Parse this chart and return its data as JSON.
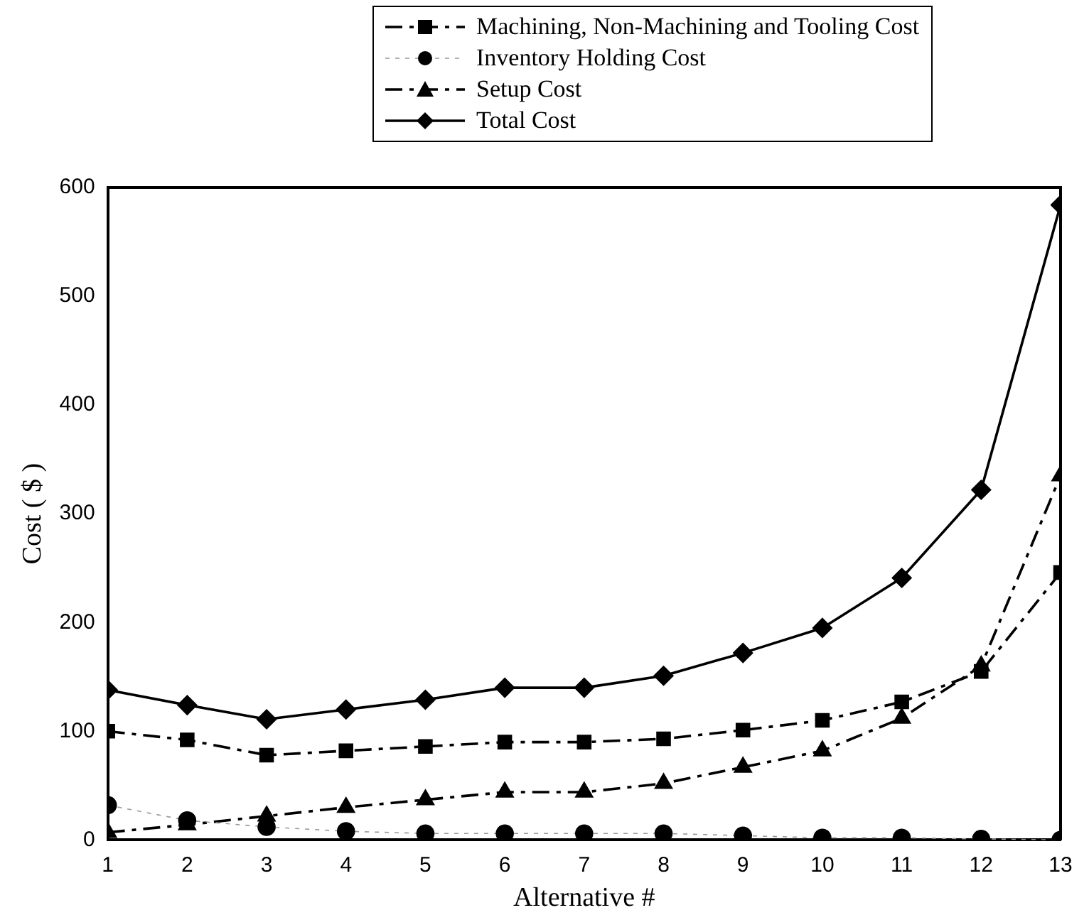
{
  "chart_data": {
    "type": "line",
    "xlabel": "Alternative #",
    "ylabel": "Cost ( $ )",
    "x": [
      1,
      2,
      3,
      4,
      5,
      6,
      7,
      8,
      9,
      10,
      11,
      12,
      13
    ],
    "xlim": [
      1,
      13
    ],
    "xticks": [
      1,
      2,
      3,
      4,
      5,
      6,
      7,
      8,
      9,
      10,
      11,
      12,
      13
    ],
    "ylim": [
      0,
      600
    ],
    "yticks": [
      0,
      100,
      200,
      300,
      400,
      500,
      600
    ],
    "grid": false,
    "legend": "top",
    "series": [
      {
        "name": "Machining, Non-Machining and Tooling Cost",
        "color": "#000000",
        "marker": "square",
        "line_style": "dashed",
        "values": [
          100,
          92,
          78,
          82,
          86,
          90,
          90,
          93,
          101,
          110,
          127,
          155,
          246
        ]
      },
      {
        "name": "Inventory Holding Cost",
        "color": "#000000",
        "marker": "circle",
        "line_style": "dotted",
        "values": [
          32,
          18,
          12,
          8,
          6,
          6,
          6,
          6,
          4,
          2,
          2,
          1,
          0
        ]
      },
      {
        "name": "Setup Cost",
        "color": "#000000",
        "marker": "triangle",
        "line_style": "dashed",
        "values": [
          7,
          14,
          22,
          30,
          37,
          44,
          44,
          52,
          67,
          82,
          112,
          160,
          335
        ]
      },
      {
        "name": "Total Cost",
        "color": "#000000",
        "marker": "diamond",
        "line_style": "solid",
        "values": [
          138,
          124,
          111,
          120,
          129,
          140,
          140,
          151,
          172,
          195,
          241,
          322,
          584
        ]
      }
    ]
  }
}
